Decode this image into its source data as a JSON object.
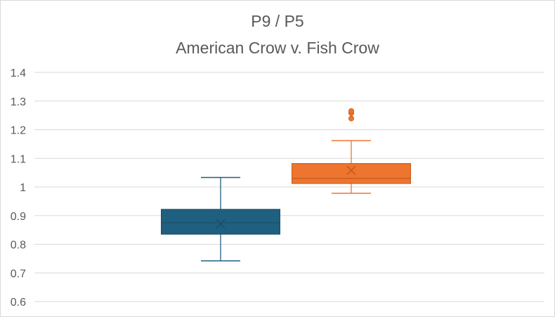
{
  "chart_data": {
    "type": "box",
    "title": "P9 / P5",
    "subtitle": "American Crow v. Fish Crow",
    "xlabel": "",
    "ylabel": "",
    "ylim": [
      0.6,
      1.4
    ],
    "yticks": [
      "0.6",
      "0.7",
      "0.8",
      "0.9",
      "1",
      "1.1",
      "1.2",
      "1.3",
      "1.4"
    ],
    "grid": true,
    "series": [
      {
        "color": "#1f5f7f",
        "min": 0.742,
        "q1": 0.835,
        "median": 0.875,
        "q3": 0.922,
        "max": 1.033,
        "mean": 0.872,
        "outliers": []
      },
      {
        "color": "#ed7530",
        "min": 0.978,
        "q1": 1.012,
        "median": 1.03,
        "q3": 1.082,
        "max": 1.162,
        "mean": 1.058,
        "outliers": [
          1.239,
          1.258,
          1.265
        ]
      }
    ]
  }
}
